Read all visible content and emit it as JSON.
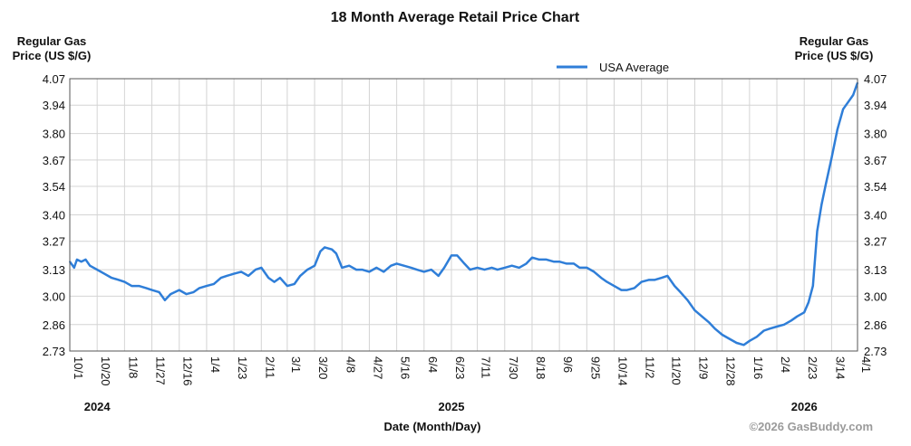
{
  "chart_data": {
    "type": "line",
    "title": "18 Month Average Retail Price Chart",
    "ylabel_left": [
      "Regular Gas",
      "Price (US $/G)"
    ],
    "ylabel_right": [
      "Regular Gas",
      "Price (US $/G)"
    ],
    "xlabel": "Date (Month/Day)",
    "credit": "©2026 GasBuddy.com",
    "legend_position": "top-center",
    "grid": true,
    "line_color": "#2f7ed8",
    "ylim": [
      2.73,
      4.07
    ],
    "yticks": [
      "4.07",
      "3.94",
      "3.80",
      "3.67",
      "3.54",
      "3.40",
      "3.27",
      "3.13",
      "3.00",
      "2.86",
      "2.73"
    ],
    "x_tick_labels": [
      "10/1",
      "10/20",
      "11/8",
      "11/27",
      "12/16",
      "1/4",
      "1/23",
      "2/11",
      "3/1",
      "3/20",
      "4/8",
      "4/27",
      "5/16",
      "6/4",
      "6/23",
      "7/11",
      "7/30",
      "8/18",
      "9/6",
      "9/25",
      "10/14",
      "11/2",
      "11/20",
      "12/9",
      "12/28",
      "1/16",
      "2/4",
      "2/23",
      "3/14",
      "4/1"
    ],
    "year_labels": [
      {
        "label": "2024",
        "tick": "10/20"
      },
      {
        "label": "2025",
        "tick": "6/23"
      },
      {
        "label": "2026",
        "tick": "2/23"
      }
    ],
    "series": [
      {
        "name": "USA Average",
        "points": [
          [
            "10/1",
            3.17
          ],
          [
            "10/4",
            3.14
          ],
          [
            "10/6",
            3.18
          ],
          [
            "10/9",
            3.17
          ],
          [
            "10/12",
            3.18
          ],
          [
            "10/15",
            3.15
          ],
          [
            "10/20",
            3.13
          ],
          [
            "10/25",
            3.11
          ],
          [
            "10/30",
            3.09
          ],
          [
            "11/4",
            3.08
          ],
          [
            "11/8",
            3.07
          ],
          [
            "11/13",
            3.05
          ],
          [
            "11/18",
            3.05
          ],
          [
            "11/23",
            3.04
          ],
          [
            "11/27",
            3.03
          ],
          [
            "12/2",
            3.02
          ],
          [
            "12/6",
            2.98
          ],
          [
            "12/10",
            3.01
          ],
          [
            "12/16",
            3.03
          ],
          [
            "12/21",
            3.01
          ],
          [
            "12/26",
            3.02
          ],
          [
            "12/30",
            3.04
          ],
          [
            "1/4",
            3.05
          ],
          [
            "1/9",
            3.06
          ],
          [
            "1/14",
            3.09
          ],
          [
            "1/18",
            3.1
          ],
          [
            "1/23",
            3.11
          ],
          [
            "1/28",
            3.12
          ],
          [
            "2/2",
            3.1
          ],
          [
            "2/7",
            3.13
          ],
          [
            "2/11",
            3.14
          ],
          [
            "2/16",
            3.09
          ],
          [
            "2/20",
            3.07
          ],
          [
            "2/24",
            3.09
          ],
          [
            "3/1",
            3.05
          ],
          [
            "3/6",
            3.06
          ],
          [
            "3/10",
            3.1
          ],
          [
            "3/15",
            3.13
          ],
          [
            "3/20",
            3.15
          ],
          [
            "3/24",
            3.22
          ],
          [
            "3/27",
            3.24
          ],
          [
            "4/1",
            3.23
          ],
          [
            "4/4",
            3.21
          ],
          [
            "4/8",
            3.14
          ],
          [
            "4/13",
            3.15
          ],
          [
            "4/18",
            3.13
          ],
          [
            "4/22",
            3.13
          ],
          [
            "4/27",
            3.12
          ],
          [
            "5/2",
            3.14
          ],
          [
            "5/7",
            3.12
          ],
          [
            "5/12",
            3.15
          ],
          [
            "5/16",
            3.16
          ],
          [
            "5/21",
            3.15
          ],
          [
            "5/26",
            3.14
          ],
          [
            "5/30",
            3.13
          ],
          [
            "6/4",
            3.12
          ],
          [
            "6/9",
            3.13
          ],
          [
            "6/14",
            3.1
          ],
          [
            "6/18",
            3.14
          ],
          [
            "6/23",
            3.2
          ],
          [
            "6/27",
            3.2
          ],
          [
            "7/2",
            3.16
          ],
          [
            "7/6",
            3.13
          ],
          [
            "7/11",
            3.14
          ],
          [
            "7/16",
            3.13
          ],
          [
            "7/21",
            3.14
          ],
          [
            "7/25",
            3.13
          ],
          [
            "7/30",
            3.14
          ],
          [
            "8/4",
            3.15
          ],
          [
            "8/9",
            3.14
          ],
          [
            "8/14",
            3.16
          ],
          [
            "8/18",
            3.19
          ],
          [
            "8/23",
            3.18
          ],
          [
            "8/28",
            3.18
          ],
          [
            "9/2",
            3.17
          ],
          [
            "9/6",
            3.17
          ],
          [
            "9/11",
            3.16
          ],
          [
            "9/16",
            3.16
          ],
          [
            "9/20",
            3.14
          ],
          [
            "9/25",
            3.14
          ],
          [
            "9/30",
            3.12
          ],
          [
            "10/5",
            3.09
          ],
          [
            "10/9",
            3.07
          ],
          [
            "10/14",
            3.05
          ],
          [
            "10/19",
            3.03
          ],
          [
            "10/23",
            3.03
          ],
          [
            "10/28",
            3.04
          ],
          [
            "11/2",
            3.07
          ],
          [
            "11/7",
            3.08
          ],
          [
            "11/11",
            3.08
          ],
          [
            "11/16",
            3.09
          ],
          [
            "11/20",
            3.1
          ],
          [
            "11/25",
            3.05
          ],
          [
            "11/29",
            3.02
          ],
          [
            "12/4",
            2.98
          ],
          [
            "12/9",
            2.93
          ],
          [
            "12/14",
            2.9
          ],
          [
            "12/19",
            2.87
          ],
          [
            "12/23",
            2.84
          ],
          [
            "12/28",
            2.81
          ],
          [
            "1/2",
            2.79
          ],
          [
            "1/7",
            2.77
          ],
          [
            "1/12",
            2.76
          ],
          [
            "1/16",
            2.78
          ],
          [
            "1/21",
            2.8
          ],
          [
            "1/26",
            2.83
          ],
          [
            "1/30",
            2.84
          ],
          [
            "2/4",
            2.85
          ],
          [
            "2/9",
            2.86
          ],
          [
            "2/14",
            2.88
          ],
          [
            "2/18",
            2.9
          ],
          [
            "2/23",
            2.92
          ],
          [
            "2/26",
            2.97
          ],
          [
            "3/1",
            3.05
          ],
          [
            "3/4",
            3.32
          ],
          [
            "3/7",
            3.45
          ],
          [
            "3/10",
            3.55
          ],
          [
            "3/14",
            3.68
          ],
          [
            "3/18",
            3.82
          ],
          [
            "3/22",
            3.92
          ],
          [
            "3/26",
            3.96
          ],
          [
            "3/29",
            3.99
          ],
          [
            "4/1",
            4.05
          ]
        ]
      }
    ]
  }
}
